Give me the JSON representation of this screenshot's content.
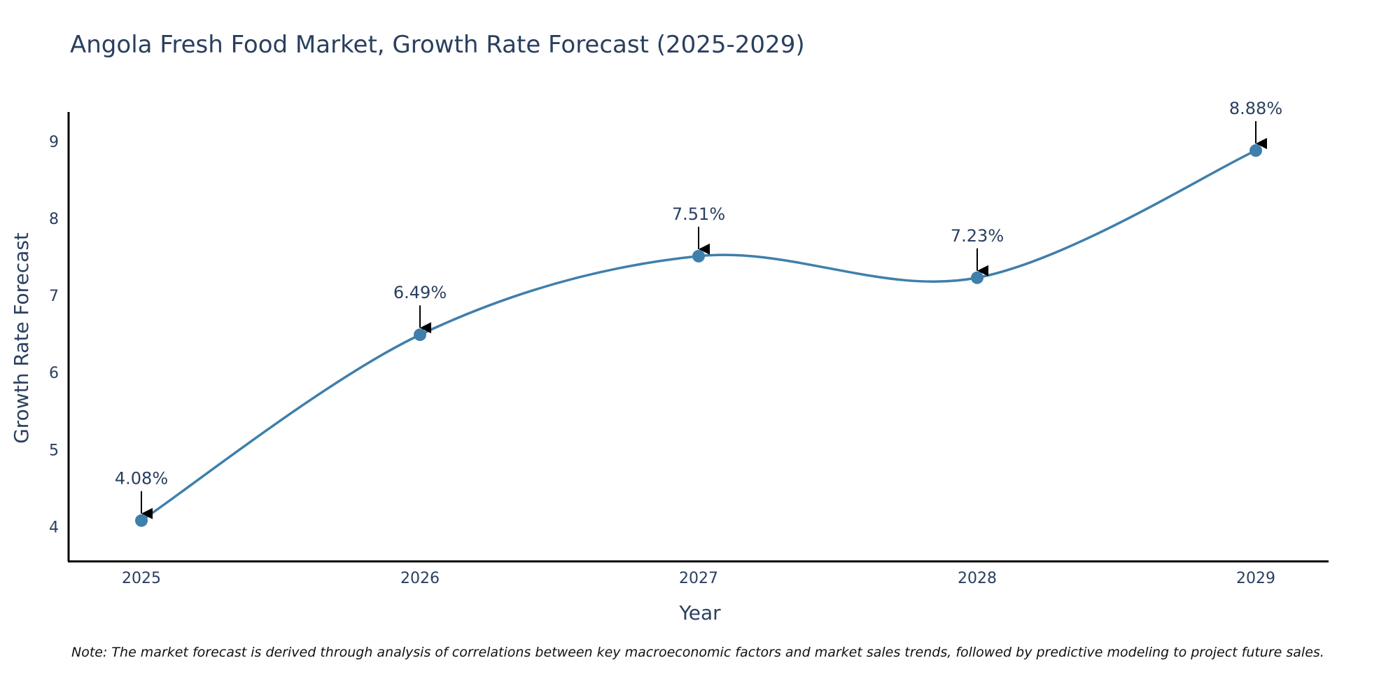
{
  "chart_data": {
    "type": "line",
    "title": "Angola Fresh Food Market, Growth Rate Forecast (2025-2029)",
    "xlabel": "Year",
    "ylabel": "Growth Rate Forecast",
    "categories": [
      "2025",
      "2026",
      "2027",
      "2028",
      "2029"
    ],
    "series": [
      {
        "name": "Growth Rate Forecast",
        "values": [
          4.08,
          6.49,
          7.51,
          7.23,
          8.88
        ]
      }
    ],
    "data_labels": [
      "4.08%",
      "6.49%",
      "7.51%",
      "7.23%",
      "8.88%"
    ],
    "yticks": [
      4,
      5,
      6,
      7,
      8,
      9
    ],
    "ylim": [
      3.55,
      9.38
    ],
    "grid": false,
    "line_color": "#3f7fab",
    "marker_color": "#3f7fab",
    "note": "Note: The market forecast is derived through analysis of correlations between key macroeconomic factors and market sales trends, followed by predictive modeling to project future sales."
  }
}
